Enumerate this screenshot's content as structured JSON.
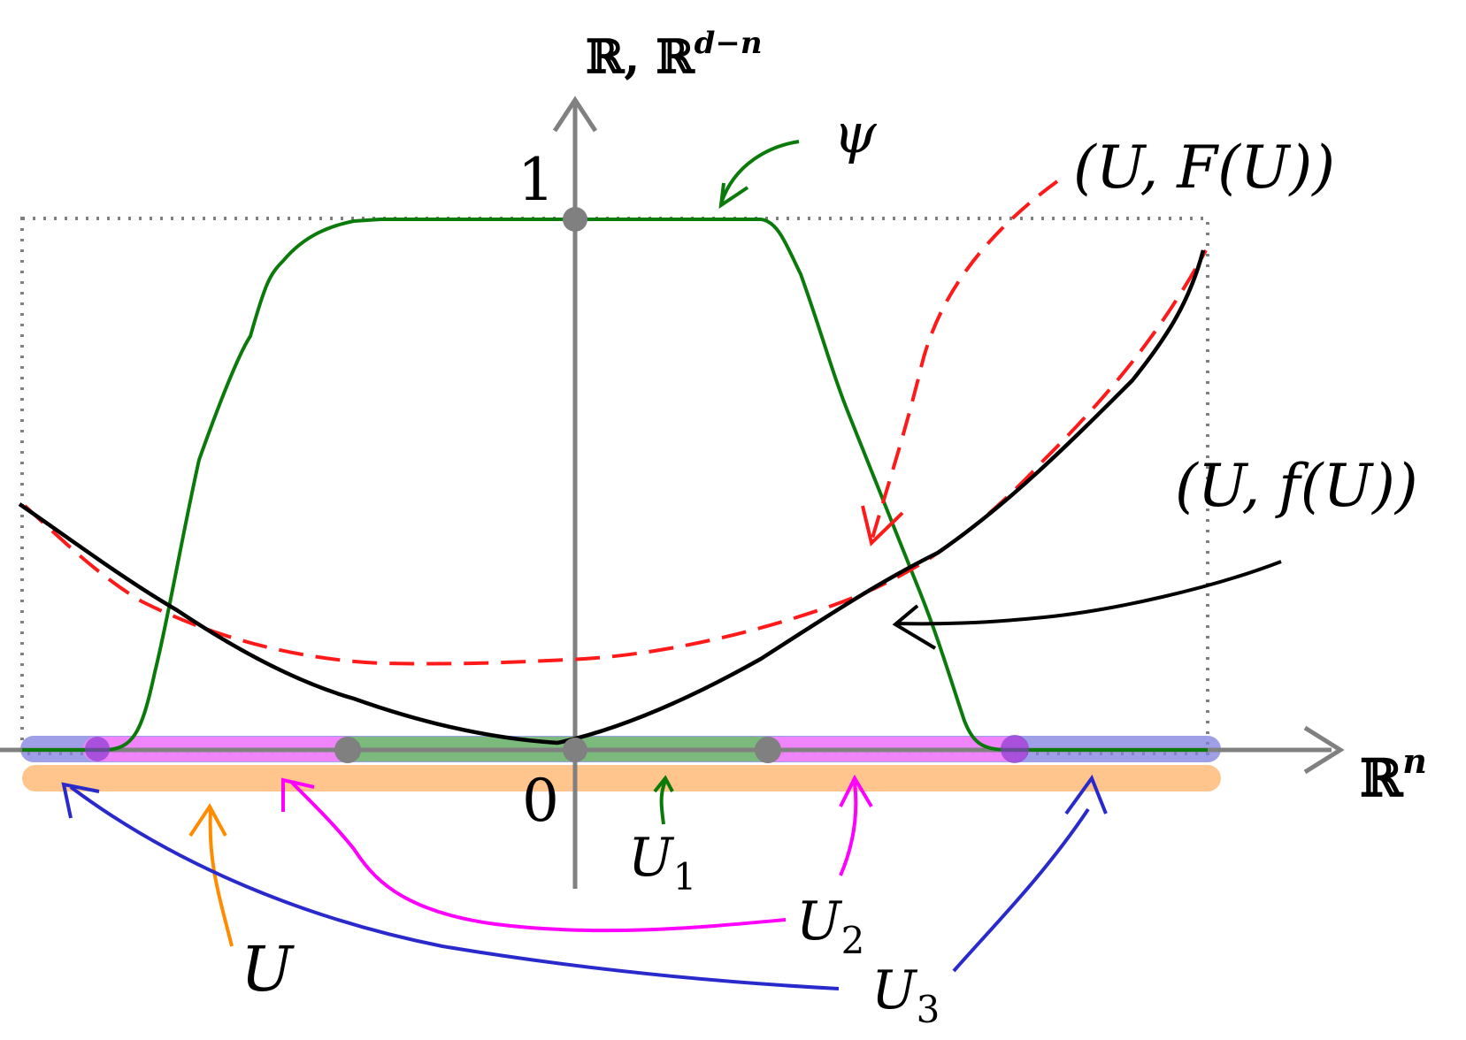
{
  "axes": {
    "vertical_label_main": "ℝ, ℝ",
    "vertical_label_sup": "d−n",
    "horizontal_label_main": "ℝ",
    "horizontal_label_sup": "n",
    "tick_one": "1",
    "tick_zero": "0"
  },
  "labels": {
    "psi": "ψ",
    "graph_F": "(U, F(U))",
    "graph_f": "(U, f(U))",
    "U": "U",
    "U1_main": "U",
    "U1_sub": "1",
    "U2_main": "U",
    "U2_sub": "2",
    "U3_main": "U",
    "U3_sub": "3"
  },
  "colors": {
    "axis": "#808080",
    "psi_curve": "#0a7a0a",
    "F_curve": "#ff1a1a",
    "f_curve": "#000000",
    "U_band": "#ffbf80",
    "U1_band": "#6fbf6f",
    "U2_band": "#ff80ff",
    "U3_band": "#8080e0",
    "U_arrow": "#ff8c00",
    "U2_arrow": "#ff00ff",
    "U3_arrow": "#2a2acc"
  }
}
